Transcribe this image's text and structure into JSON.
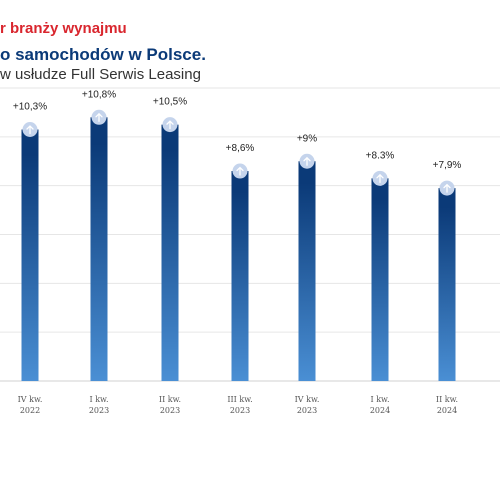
{
  "title_lines": [
    "r branży wynajmu",
    "o samochodów w Polsce.",
    "w usłudze Full Serwis Leasing"
  ],
  "chart_data": {
    "type": "bar",
    "categories": [
      [
        "IV kw.",
        "2022"
      ],
      [
        "I kw.",
        "2023"
      ],
      [
        "II kw.",
        "2023"
      ],
      [
        "III kw.",
        "2023"
      ],
      [
        "IV kw.",
        "2023"
      ],
      [
        "I kw.",
        "2024"
      ],
      [
        "II kw.",
        "2024"
      ]
    ],
    "values": [
      10.3,
      10.8,
      10.5,
      8.6,
      9.0,
      8.3,
      7.9
    ],
    "data_labels": [
      "+10,3%",
      "+10,8%",
      "+10,5%",
      "+8,6%",
      "+9%",
      "+8.3%",
      "+7,9%"
    ],
    "ylim": [
      0,
      12
    ],
    "grid": true,
    "marker_icon": "arrow-up-circle-icon",
    "colors": {
      "bar_top": "#0b3a78",
      "bar_bottom": "#4a8fd4",
      "grid": "#e6e6e6",
      "marker": "#c5d4ec",
      "marker_arrow": "#ffffff"
    }
  }
}
